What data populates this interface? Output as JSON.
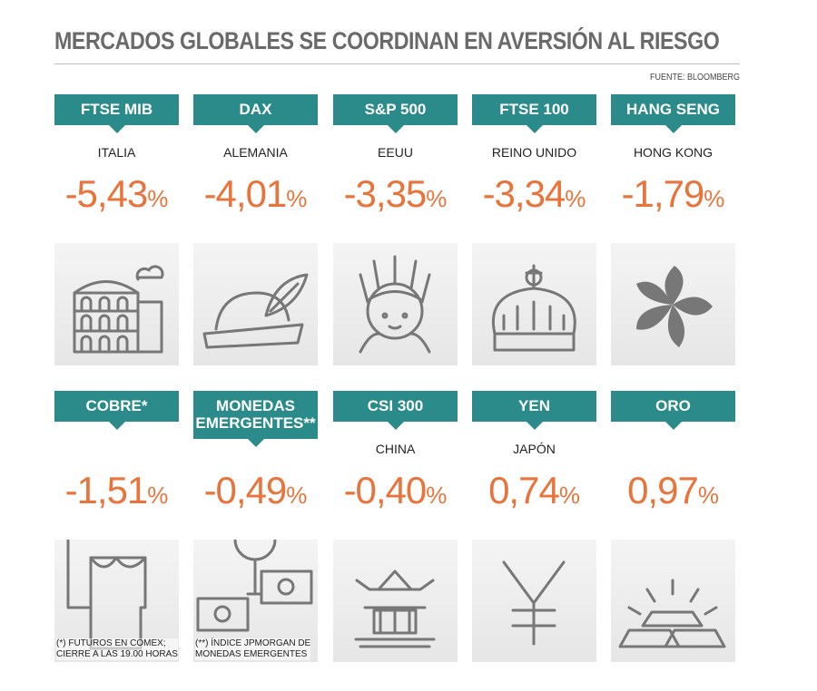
{
  "title": "MERCADOS GLOBALES SE COORDINAN EN AVERSIÓN AL RIESGO",
  "source": "FUENTE: BLOOMBERG",
  "unit": "%",
  "tiles": [
    {
      "name": [
        "FTSE MIB"
      ],
      "country": "ITALIA",
      "change": "-5,43"
    },
    {
      "name": [
        "DAX"
      ],
      "country": "ALEMANIA",
      "change": "-4,01"
    },
    {
      "name": [
        "S&P 500"
      ],
      "country": "EEUU",
      "change": "-3,35"
    },
    {
      "name": [
        "FTSE 100"
      ],
      "country": "REINO UNIDO",
      "change": "-3,34"
    },
    {
      "name": [
        "HANG SENG"
      ],
      "country": "HONG KONG",
      "change": "-1,79"
    },
    {
      "name": [
        "COBRE*"
      ],
      "change": "-1,51",
      "note": [
        "(*) FUTUROS EN COMEX;",
        "CIERRE A LAS 19.00 HORAS"
      ]
    },
    {
      "name": [
        "MONEDAS",
        "EMERGENTES**"
      ],
      "change": "-0,49",
      "note": [
        "(**) ÍNDICE JPMORGAN DE",
        "MONEDAS EMERGENTES"
      ]
    },
    {
      "name": [
        "CSI 300"
      ],
      "country": "CHINA",
      "change": "-0,40"
    },
    {
      "name": [
        "YEN"
      ],
      "country": "JAPÓN",
      "change": "0,74"
    },
    {
      "name": [
        "ORO"
      ],
      "change": "0,97"
    }
  ]
}
